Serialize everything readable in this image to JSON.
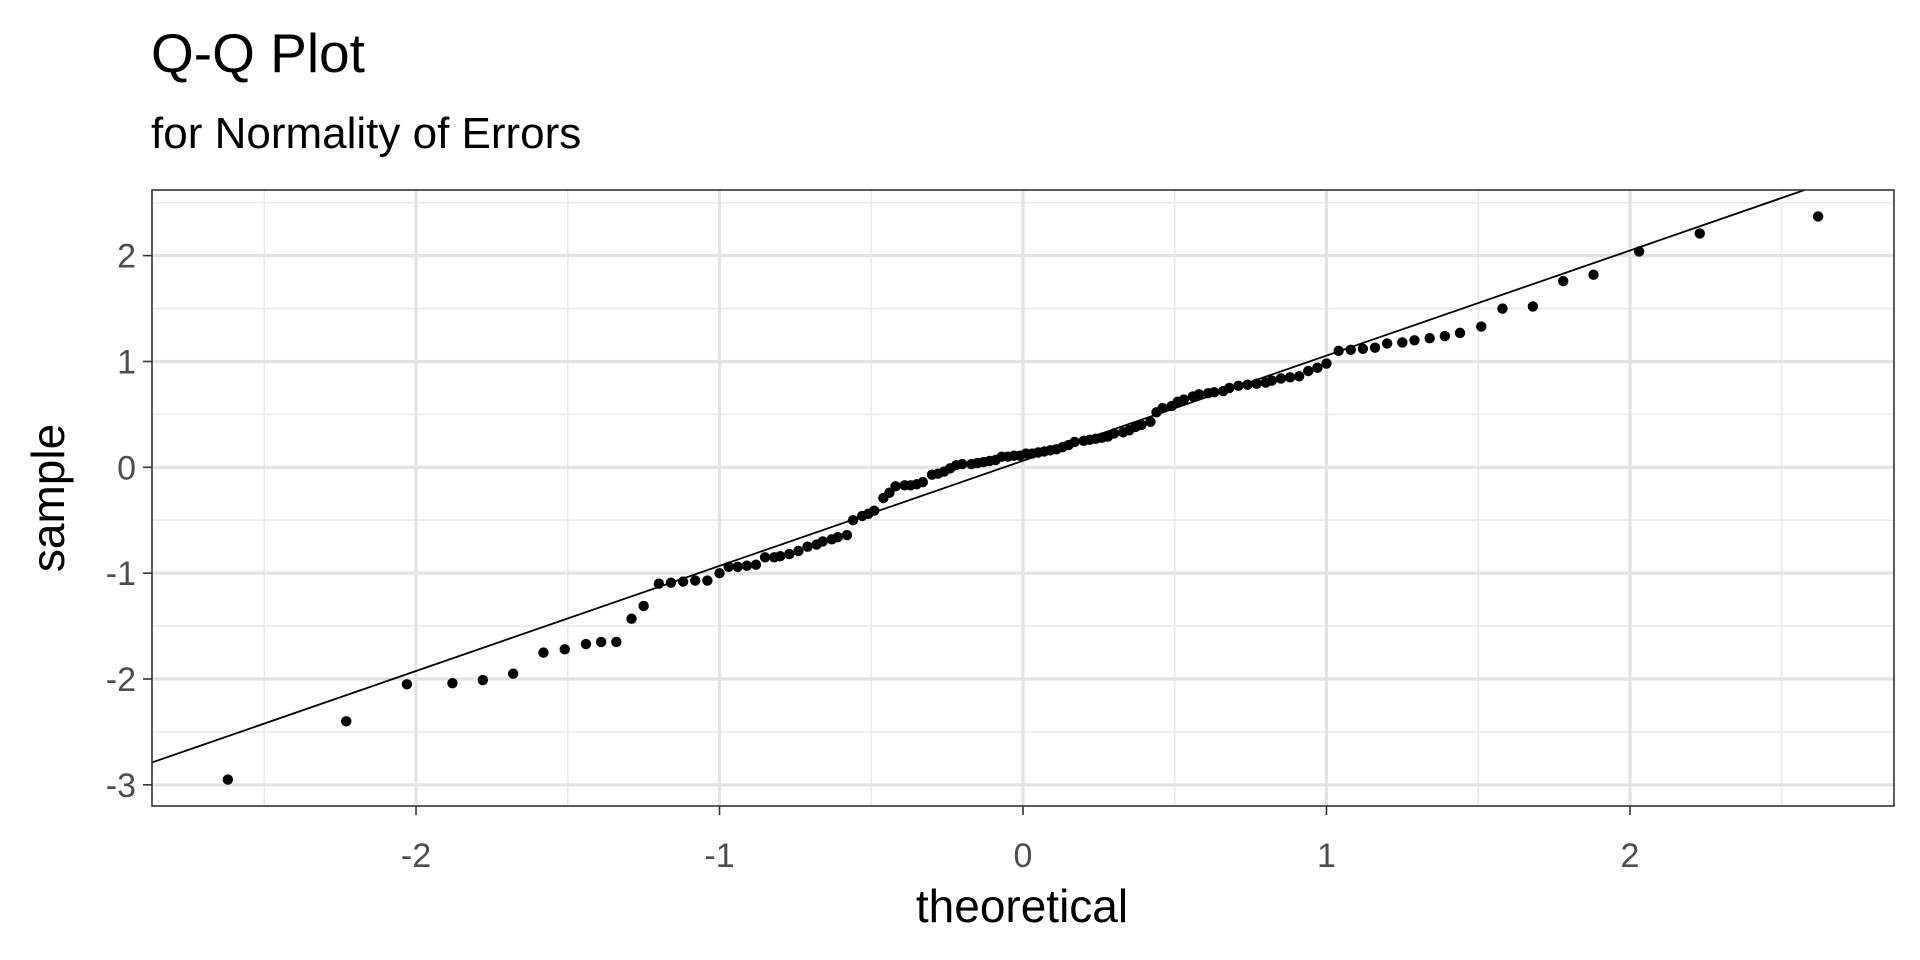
{
  "chart_data": {
    "type": "scatter",
    "title": "Q-Q Plot",
    "subtitle": "for Normality of Errors",
    "xlabel": "theoretical",
    "ylabel": "sample",
    "xlim": [
      -2.87,
      2.87
    ],
    "ylim": [
      -3.2,
      2.62
    ],
    "xticks": [
      -2,
      -1,
      0,
      1,
      2
    ],
    "xtick_labels": [
      "-2",
      "-1",
      "0",
      "1",
      "2"
    ],
    "yticks": [
      -3,
      -2,
      -1,
      0,
      1,
      2
    ],
    "ytick_labels": [
      "-3",
      "-2",
      "-1",
      "0",
      "1",
      "2"
    ],
    "grid": true,
    "reference_line": {
      "intercept": 0.062,
      "slope": 0.9932
    },
    "x": [
      -2.62,
      -2.23,
      -2.03,
      -1.88,
      -1.78,
      -1.68,
      -1.58,
      -1.51,
      -1.44,
      -1.39,
      -1.34,
      -1.29,
      -1.25,
      -1.2,
      -1.16,
      -1.12,
      -1.08,
      -1.04,
      -1.0,
      -0.97,
      -0.94,
      -0.91,
      -0.88,
      -0.85,
      -0.82,
      -0.8,
      -0.77,
      -0.74,
      -0.71,
      -0.68,
      -0.66,
      -0.63,
      -0.61,
      -0.58,
      -0.56,
      -0.53,
      -0.51,
      -0.49,
      -0.46,
      -0.44,
      -0.42,
      -0.39,
      -0.37,
      -0.35,
      -0.33,
      -0.3,
      -0.28,
      -0.26,
      -0.24,
      -0.22,
      -0.2,
      -0.17,
      -0.15,
      -0.13,
      -0.11,
      -0.09,
      -0.07,
      -0.05,
      -0.03,
      -0.01,
      0.01,
      0.03,
      0.05,
      0.07,
      0.09,
      0.11,
      0.13,
      0.15,
      0.17,
      0.2,
      0.22,
      0.24,
      0.26,
      0.28,
      0.3,
      0.33,
      0.35,
      0.37,
      0.39,
      0.42,
      0.44,
      0.46,
      0.49,
      0.51,
      0.53,
      0.56,
      0.58,
      0.61,
      0.63,
      0.66,
      0.68,
      0.71,
      0.74,
      0.77,
      0.8,
      0.82,
      0.85,
      0.88,
      0.91,
      0.94,
      0.97,
      1.0,
      1.04,
      1.08,
      1.12,
      1.16,
      1.2,
      1.25,
      1.29,
      1.34,
      1.39,
      1.44,
      1.51,
      1.58,
      1.68,
      1.78,
      1.88,
      2.03,
      2.23,
      2.62
    ],
    "y": [
      -2.95,
      -2.4,
      -2.05,
      -2.04,
      -2.01,
      -1.95,
      -1.75,
      -1.72,
      -1.67,
      -1.65,
      -1.65,
      -1.43,
      -1.31,
      -1.1,
      -1.09,
      -1.08,
      -1.07,
      -1.07,
      -1.0,
      -0.94,
      -0.94,
      -0.93,
      -0.92,
      -0.85,
      -0.85,
      -0.84,
      -0.82,
      -0.79,
      -0.75,
      -0.73,
      -0.7,
      -0.68,
      -0.66,
      -0.64,
      -0.5,
      -0.46,
      -0.44,
      -0.41,
      -0.29,
      -0.24,
      -0.18,
      -0.17,
      -0.17,
      -0.16,
      -0.14,
      -0.07,
      -0.06,
      -0.04,
      -0.01,
      0.02,
      0.03,
      0.03,
      0.04,
      0.05,
      0.06,
      0.07,
      0.1,
      0.1,
      0.11,
      0.11,
      0.13,
      0.13,
      0.14,
      0.15,
      0.16,
      0.17,
      0.19,
      0.21,
      0.24,
      0.25,
      0.26,
      0.27,
      0.28,
      0.29,
      0.32,
      0.33,
      0.35,
      0.38,
      0.4,
      0.43,
      0.52,
      0.56,
      0.58,
      0.62,
      0.64,
      0.67,
      0.69,
      0.7,
      0.71,
      0.72,
      0.75,
      0.77,
      0.78,
      0.79,
      0.8,
      0.82,
      0.84,
      0.85,
      0.86,
      0.91,
      0.94,
      0.98,
      1.1,
      1.11,
      1.12,
      1.13,
      1.17,
      1.18,
      1.2,
      1.22,
      1.24,
      1.27,
      1.33,
      1.5,
      1.52,
      1.76,
      1.82,
      2.04,
      2.21,
      2.37
    ]
  }
}
